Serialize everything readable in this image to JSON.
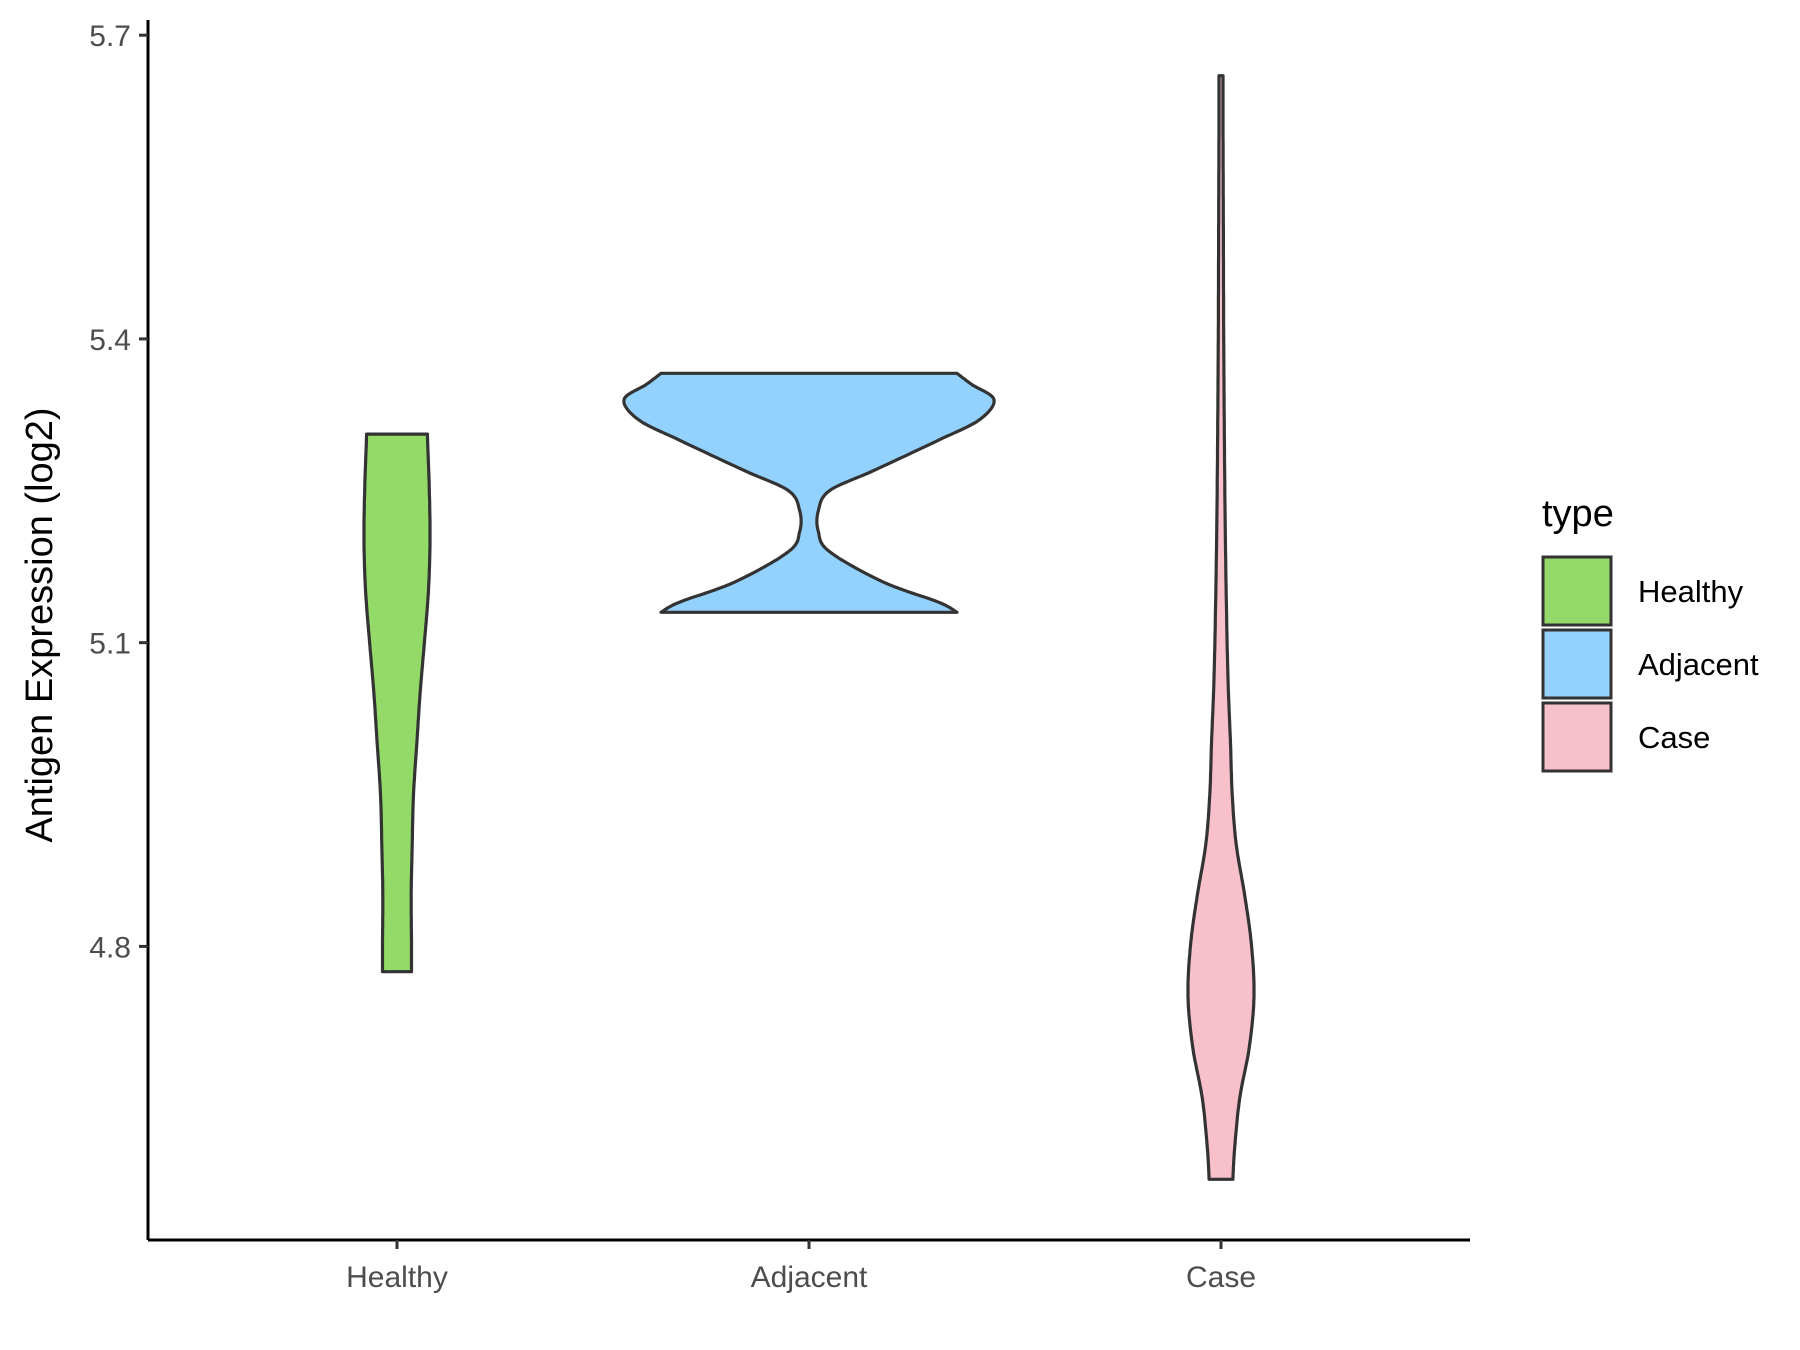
{
  "chart_data": {
    "type": "violin",
    "ylabel": "Antigen Expression (log2)",
    "ylim": [
      4.51,
      5.715
    ],
    "yticks": [
      4.8,
      5.1,
      5.4,
      5.7
    ],
    "ytick_labels": [
      "4.8",
      "5.1",
      "5.4",
      "5.7"
    ],
    "categories": [
      "Healthy",
      "Adjacent",
      "Case"
    ],
    "grid": false,
    "legend": {
      "title": "type",
      "position": "right",
      "entries": [
        "Healthy",
        "Adjacent",
        "Case"
      ]
    },
    "series": [
      {
        "name": "Healthy",
        "color": "#93DA68",
        "ymin": 4.775,
        "ymax": 5.306,
        "profile": [
          [
            4.775,
            0.44
          ],
          [
            4.8,
            0.44
          ],
          [
            4.85,
            0.43
          ],
          [
            4.9,
            0.46
          ],
          [
            4.95,
            0.5
          ],
          [
            5.0,
            0.6
          ],
          [
            5.05,
            0.7
          ],
          [
            5.1,
            0.83
          ],
          [
            5.15,
            0.95
          ],
          [
            5.2,
            1.0
          ],
          [
            5.25,
            0.98
          ],
          [
            5.306,
            0.92
          ]
        ]
      },
      {
        "name": "Adjacent",
        "color": "#93D2FE",
        "ymin": 5.13,
        "ymax": 5.366,
        "profile": [
          [
            5.13,
            0.8
          ],
          [
            5.14,
            0.7
          ],
          [
            5.16,
            0.4
          ],
          [
            5.19,
            0.11
          ],
          [
            5.21,
            0.05
          ],
          [
            5.23,
            0.05
          ],
          [
            5.25,
            0.11
          ],
          [
            5.27,
            0.35
          ],
          [
            5.3,
            0.7
          ],
          [
            5.32,
            0.92
          ],
          [
            5.34,
            1.0
          ],
          [
            5.355,
            0.88
          ],
          [
            5.366,
            0.8
          ]
        ]
      },
      {
        "name": "Case",
        "color": "#F7C0CB",
        "ymin": 4.57,
        "ymax": 5.66,
        "profile": [
          [
            4.57,
            0.35
          ],
          [
            4.6,
            0.4
          ],
          [
            4.65,
            0.55
          ],
          [
            4.7,
            0.83
          ],
          [
            4.75,
            0.97
          ],
          [
            4.8,
            0.9
          ],
          [
            4.85,
            0.7
          ],
          [
            4.9,
            0.45
          ],
          [
            4.95,
            0.33
          ],
          [
            5.0,
            0.28
          ],
          [
            5.05,
            0.22
          ],
          [
            5.1,
            0.18
          ],
          [
            5.2,
            0.13
          ],
          [
            5.3,
            0.1
          ],
          [
            5.4,
            0.08
          ],
          [
            5.5,
            0.07
          ],
          [
            5.6,
            0.06
          ],
          [
            5.66,
            0.06
          ]
        ]
      }
    ]
  }
}
